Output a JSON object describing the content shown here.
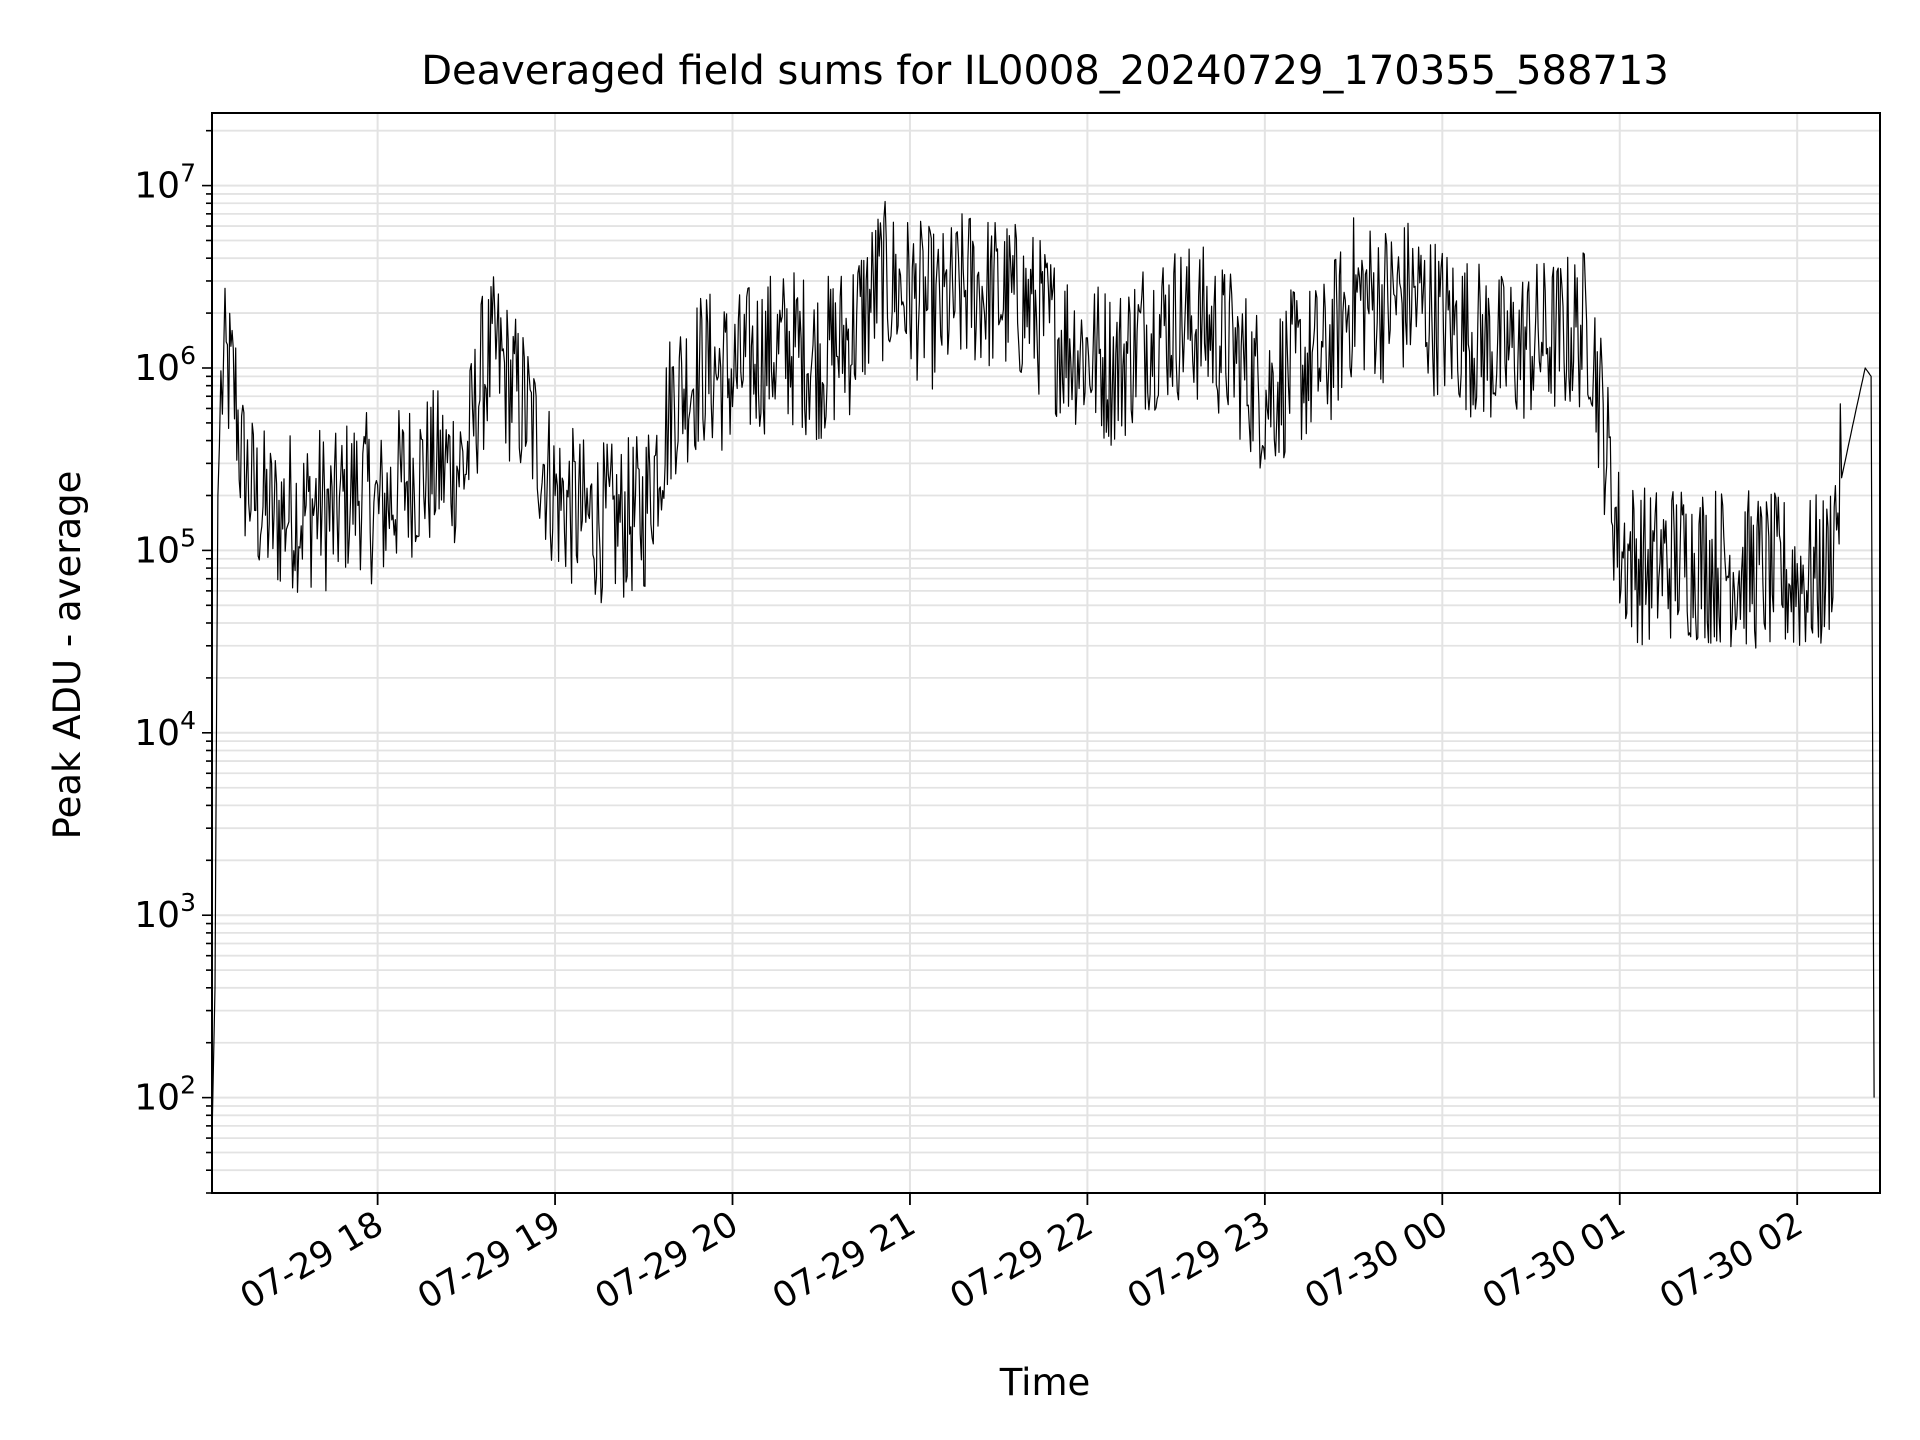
{
  "chart_data": {
    "type": "line",
    "title": "Deaveraged field sums for IL0008_20240729_170355_588713",
    "xlabel": "Time",
    "ylabel": "Peak ADU - average",
    "yscale": "log",
    "grid": true,
    "xlim": [
      "2024-07-29 17:04",
      "2024-07-30 02:28"
    ],
    "ylim": [
      30,
      25000000
    ],
    "x_ticks": [
      {
        "t": "2024-07-29 18:00",
        "label": "07-29 18"
      },
      {
        "t": "2024-07-29 19:00",
        "label": "07-29 19"
      },
      {
        "t": "2024-07-29 20:00",
        "label": "07-29 20"
      },
      {
        "t": "2024-07-29 21:00",
        "label": "07-29 21"
      },
      {
        "t": "2024-07-29 22:00",
        "label": "07-29 22"
      },
      {
        "t": "2024-07-29 23:00",
        "label": "07-29 23"
      },
      {
        "t": "2024-07-30 00:00",
        "label": "07-30 00"
      },
      {
        "t": "2024-07-30 01:00",
        "label": "07-30 01"
      },
      {
        "t": "2024-07-30 02:00",
        "label": "07-30 02"
      }
    ],
    "y_ticks": [
      {
        "v": 100,
        "base": "10",
        "exp": "2"
      },
      {
        "v": 1000,
        "base": "10",
        "exp": "3"
      },
      {
        "v": 10000,
        "base": "10",
        "exp": "4"
      },
      {
        "v": 100000,
        "base": "10",
        "exp": "5"
      },
      {
        "v": 1000000,
        "base": "10",
        "exp": "6"
      },
      {
        "v": 10000000,
        "base": "10",
        "exp": "7"
      }
    ],
    "series": [
      {
        "color": "#000000",
        "x": [
          "2024-07-29 17:04",
          "2024-07-29 17:05",
          "2024-07-29 17:06",
          "2024-07-29 17:07",
          "2024-07-29 17:08",
          "2024-07-29 17:10",
          "2024-07-29 17:12",
          "2024-07-29 17:14",
          "2024-07-29 17:16",
          "2024-07-29 17:18",
          "2024-07-29 17:20",
          "2024-07-29 17:25",
          "2024-07-29 17:30",
          "2024-07-29 17:35",
          "2024-07-29 17:40",
          "2024-07-29 17:45",
          "2024-07-29 17:50",
          "2024-07-29 17:55",
          "2024-07-29 18:00",
          "2024-07-29 18:10",
          "2024-07-29 18:20",
          "2024-07-29 18:30",
          "2024-07-29 18:35",
          "2024-07-29 18:40",
          "2024-07-29 18:45",
          "2024-07-29 18:50",
          "2024-07-29 19:00",
          "2024-07-29 19:10",
          "2024-07-29 19:20",
          "2024-07-29 19:30",
          "2024-07-29 19:40",
          "2024-07-29 19:50",
          "2024-07-29 20:00",
          "2024-07-29 20:10",
          "2024-07-29 20:20",
          "2024-07-29 20:30",
          "2024-07-29 20:40",
          "2024-07-29 20:50",
          "2024-07-29 21:00",
          "2024-07-29 21:10",
          "2024-07-29 21:20",
          "2024-07-29 21:30",
          "2024-07-29 21:40",
          "2024-07-29 21:50",
          "2024-07-29 22:00",
          "2024-07-29 22:10",
          "2024-07-29 22:20",
          "2024-07-29 22:30",
          "2024-07-29 22:40",
          "2024-07-29 22:50",
          "2024-07-29 23:00",
          "2024-07-29 23:10",
          "2024-07-29 23:20",
          "2024-07-29 23:30",
          "2024-07-29 23:40",
          "2024-07-29 23:50",
          "2024-07-30 00:00",
          "2024-07-30 00:10",
          "2024-07-30 00:20",
          "2024-07-30 00:30",
          "2024-07-30 00:40",
          "2024-07-30 00:50",
          "2024-07-30 01:00",
          "2024-07-30 01:10",
          "2024-07-30 01:20",
          "2024-07-30 01:30",
          "2024-07-30 01:40",
          "2024-07-30 01:50",
          "2024-07-30 02:00",
          "2024-07-30 02:10",
          "2024-07-30 02:15",
          "2024-07-30 02:20",
          "2024-07-30 02:23",
          "2024-07-30 02:25",
          "2024-07-30 02:26"
        ],
        "y": [
          60,
          400,
          200000,
          700000,
          1000000,
          900000,
          700000,
          300000,
          250000,
          200000,
          180000,
          150000,
          170000,
          160000,
          180000,
          150000,
          200000,
          220000,
          160000,
          250000,
          280000,
          300000,
          900000,
          1200000,
          800000,
          600000,
          200000,
          150000,
          140000,
          160000,
          700000,
          1000000,
          900000,
          1200000,
          1300000,
          1100000,
          1500000,
          3000000,
          2500000,
          2000000,
          2800000,
          2500000,
          2200000,
          1500000,
          1200000,
          1000000,
          1600000,
          1800000,
          1700000,
          1200000,
          700000,
          1000000,
          1100000,
          2500000,
          2300000,
          2500000,
          1800000,
          1500000,
          1200000,
          1400000,
          1500000,
          1700000,
          100000,
          80000,
          90000,
          85000,
          80000,
          75000,
          70000,
          75000,
          250000,
          600000,
          1000000,
          900000,
          100
        ]
      }
    ]
  }
}
